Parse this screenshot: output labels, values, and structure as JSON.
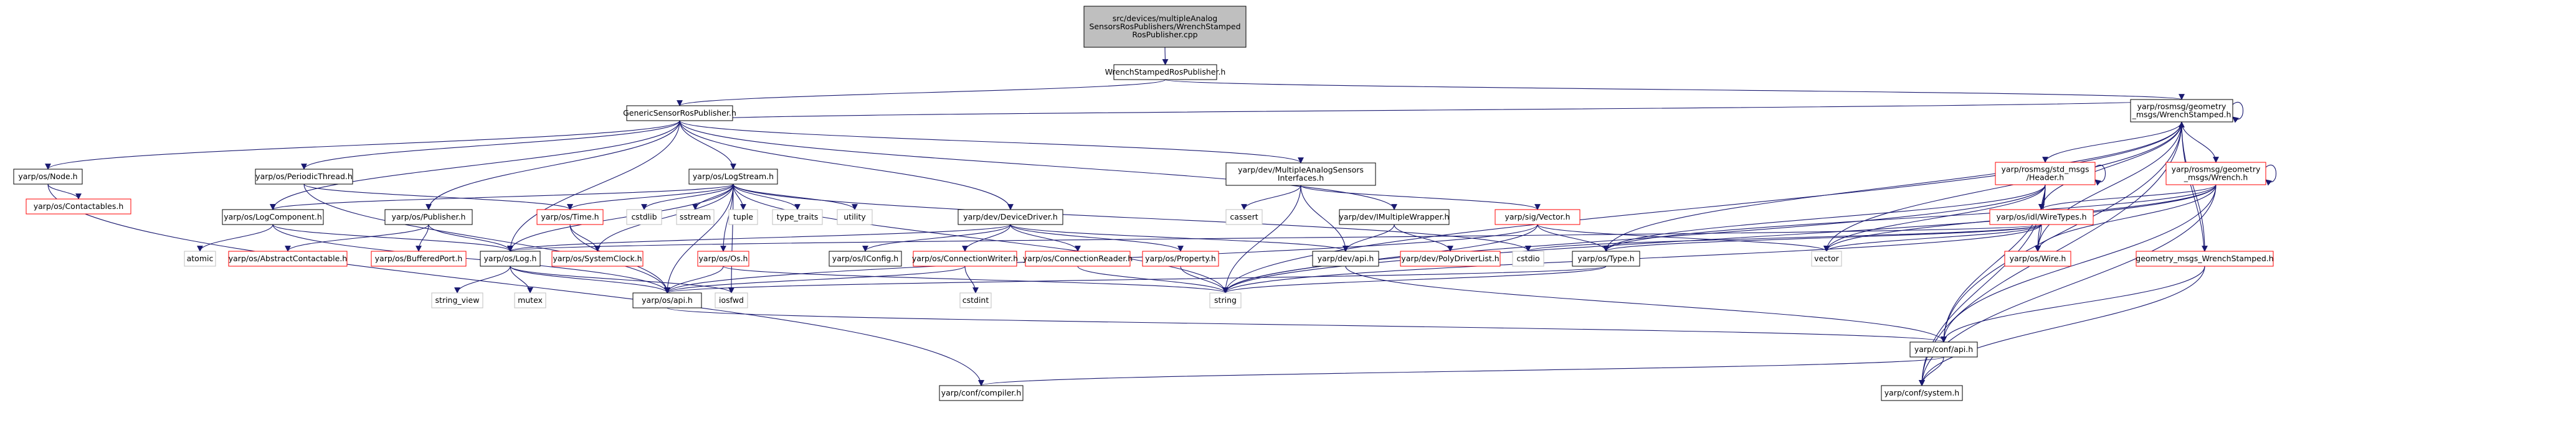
{
  "graph": {
    "root": {
      "lines": [
        "src/devices/multipleAnalog",
        "SensorsRosPublishers/WrenchStamped",
        "RosPublisher.cpp"
      ]
    },
    "nodes": [
      {
        "id": "n1",
        "lines": [
          "WrenchStampedRosPublisher.h"
        ],
        "style": "black"
      },
      {
        "id": "n2",
        "lines": [
          "GenericSensorRosPublisher.h"
        ],
        "style": "black"
      },
      {
        "id": "n3",
        "lines": [
          "yarp/rosmsg/geometry",
          "_msgs/WrenchStamped.h"
        ],
        "style": "black"
      },
      {
        "id": "n4",
        "lines": [
          "yarp/os/Node.h"
        ],
        "style": "black"
      },
      {
        "id": "n5",
        "lines": [
          "yarp/os/Contactables.h"
        ],
        "style": "red"
      },
      {
        "id": "n6",
        "lines": [
          "yarp/os/PeriodicThread.h"
        ],
        "style": "black"
      },
      {
        "id": "n7",
        "lines": [
          "yarp/os/LogStream.h"
        ],
        "style": "black"
      },
      {
        "id": "n8",
        "lines": [
          "yarp/dev/MultipleAnalogSensors",
          "Interfaces.h"
        ],
        "style": "black"
      },
      {
        "id": "n9",
        "lines": [
          "yarp/rosmsg/std_msgs",
          "/Header.h"
        ],
        "style": "red"
      },
      {
        "id": "n10",
        "lines": [
          "yarp/rosmsg/geometry",
          "_msgs/Wrench.h"
        ],
        "style": "red"
      },
      {
        "id": "n11",
        "lines": [
          "yarp/os/LogComponent.h"
        ],
        "style": "black"
      },
      {
        "id": "n12",
        "lines": [
          "yarp/os/Publisher.h"
        ],
        "style": "black"
      },
      {
        "id": "n13",
        "lines": [
          "yarp/os/Time.h"
        ],
        "style": "red"
      },
      {
        "id": "n14",
        "lines": [
          "cstdlib"
        ],
        "style": "gray"
      },
      {
        "id": "n15",
        "lines": [
          "sstream"
        ],
        "style": "gray"
      },
      {
        "id": "n16",
        "lines": [
          "tuple"
        ],
        "style": "gray"
      },
      {
        "id": "n17",
        "lines": [
          "type_traits"
        ],
        "style": "gray"
      },
      {
        "id": "n18",
        "lines": [
          "utility"
        ],
        "style": "gray"
      },
      {
        "id": "n19",
        "lines": [
          "yarp/dev/DeviceDriver.h"
        ],
        "style": "black"
      },
      {
        "id": "n20",
        "lines": [
          "cassert"
        ],
        "style": "gray"
      },
      {
        "id": "n21",
        "lines": [
          "yarp/dev/IMultipleWrapper.h"
        ],
        "style": "black"
      },
      {
        "id": "n22",
        "lines": [
          "yarp/sig/Vector.h"
        ],
        "style": "red"
      },
      {
        "id": "n23",
        "lines": [
          "yarp/os/idl/WireTypes.h"
        ],
        "style": "red"
      },
      {
        "id": "n24",
        "lines": [
          "atomic"
        ],
        "style": "gray"
      },
      {
        "id": "n25",
        "lines": [
          "yarp/os/AbstractContactable.h"
        ],
        "style": "red"
      },
      {
        "id": "n26",
        "lines": [
          "yarp/os/BufferedPort.h"
        ],
        "style": "red"
      },
      {
        "id": "n27",
        "lines": [
          "yarp/os/Log.h"
        ],
        "style": "black"
      },
      {
        "id": "n28",
        "lines": [
          "yarp/os/SystemClock.h"
        ],
        "style": "red"
      },
      {
        "id": "n29",
        "lines": [
          "yarp/os/Os.h"
        ],
        "style": "red"
      },
      {
        "id": "n30",
        "lines": [
          "yarp/os/IConfig.h"
        ],
        "style": "black"
      },
      {
        "id": "n31",
        "lines": [
          "yarp/os/ConnectionWriter.h"
        ],
        "style": "red"
      },
      {
        "id": "n32",
        "lines": [
          "yarp/os/ConnectionReader.h"
        ],
        "style": "red"
      },
      {
        "id": "n33",
        "lines": [
          "yarp/os/Property.h"
        ],
        "style": "red"
      },
      {
        "id": "n34",
        "lines": [
          "yarp/dev/api.h"
        ],
        "style": "black"
      },
      {
        "id": "n35",
        "lines": [
          "yarp/dev/PolyDriverList.h"
        ],
        "style": "red"
      },
      {
        "id": "n36",
        "lines": [
          "cstdio"
        ],
        "style": "gray"
      },
      {
        "id": "n37",
        "lines": [
          "yarp/os/Type.h"
        ],
        "style": "black"
      },
      {
        "id": "n38",
        "lines": [
          "vector"
        ],
        "style": "gray"
      },
      {
        "id": "n39",
        "lines": [
          "yarp/os/Wire.h"
        ],
        "style": "red"
      },
      {
        "id": "n40",
        "lines": [
          "geometry_msgs_WrenchStamped.h"
        ],
        "style": "red"
      },
      {
        "id": "n41",
        "lines": [
          "string_view"
        ],
        "style": "gray"
      },
      {
        "id": "n42",
        "lines": [
          "mutex"
        ],
        "style": "gray"
      },
      {
        "id": "n43",
        "lines": [
          "yarp/os/api.h"
        ],
        "style": "black"
      },
      {
        "id": "n44",
        "lines": [
          "iosfwd"
        ],
        "style": "gray"
      },
      {
        "id": "n45",
        "lines": [
          "cstdint"
        ],
        "style": "gray"
      },
      {
        "id": "n46",
        "lines": [
          "string"
        ],
        "style": "gray"
      },
      {
        "id": "n47",
        "lines": [
          "yarp/conf/api.h"
        ],
        "style": "black"
      },
      {
        "id": "n48",
        "lines": [
          "yarp/conf/compiler.h"
        ],
        "style": "black"
      },
      {
        "id": "n49",
        "lines": [
          "yarp/conf/system.h"
        ],
        "style": "black"
      }
    ],
    "edges": [
      [
        "root",
        "n1"
      ],
      [
        "n1",
        "n2"
      ],
      [
        "n1",
        "n3"
      ],
      [
        "n2",
        "n4"
      ],
      [
        "n2",
        "n6"
      ],
      [
        "n2",
        "n7"
      ],
      [
        "n2",
        "n8"
      ],
      [
        "n2",
        "n11"
      ],
      [
        "n2",
        "n12"
      ],
      [
        "n2",
        "n19"
      ],
      [
        "n2",
        "n21"
      ],
      [
        "n2",
        "n27"
      ],
      [
        "n2",
        "n3"
      ],
      [
        "n4",
        "n5"
      ],
      [
        "n4",
        "n48"
      ],
      [
        "n6",
        "n13"
      ],
      [
        "n6",
        "n43"
      ],
      [
        "n7",
        "n11"
      ],
      [
        "n7",
        "n13"
      ],
      [
        "n7",
        "n14"
      ],
      [
        "n7",
        "n15"
      ],
      [
        "n7",
        "n16"
      ],
      [
        "n7",
        "n17"
      ],
      [
        "n7",
        "n18"
      ],
      [
        "n7",
        "n27"
      ],
      [
        "n7",
        "n28"
      ],
      [
        "n7",
        "n29"
      ],
      [
        "n7",
        "n36"
      ],
      [
        "n7",
        "n43"
      ],
      [
        "n7",
        "n44"
      ],
      [
        "n7",
        "n46"
      ],
      [
        "n8",
        "n20"
      ],
      [
        "n8",
        "n22"
      ],
      [
        "n8",
        "n34"
      ],
      [
        "n8",
        "n46"
      ],
      [
        "n11",
        "n24"
      ],
      [
        "n11",
        "n27"
      ],
      [
        "n11",
        "n43"
      ],
      [
        "n12",
        "n25"
      ],
      [
        "n12",
        "n26"
      ],
      [
        "n12",
        "n27"
      ],
      [
        "n13",
        "n28"
      ],
      [
        "n13",
        "n43"
      ],
      [
        "n19",
        "n30"
      ],
      [
        "n19",
        "n31"
      ],
      [
        "n19",
        "n32"
      ],
      [
        "n19",
        "n33"
      ],
      [
        "n19",
        "n34"
      ],
      [
        "n19",
        "n27"
      ],
      [
        "n21",
        "n34"
      ],
      [
        "n21",
        "n35"
      ],
      [
        "n22",
        "n37"
      ],
      [
        "n22",
        "n38"
      ],
      [
        "n22",
        "n43"
      ],
      [
        "n22",
        "n46"
      ],
      [
        "n23",
        "n36"
      ],
      [
        "n23",
        "n37"
      ],
      [
        "n23",
        "n38"
      ],
      [
        "n23",
        "n39"
      ],
      [
        "n23",
        "n46"
      ],
      [
        "n23",
        "n27"
      ],
      [
        "n27",
        "n41"
      ],
      [
        "n27",
        "n42"
      ],
      [
        "n27",
        "n43"
      ],
      [
        "n27",
        "n44"
      ],
      [
        "n29",
        "n43"
      ],
      [
        "n29",
        "n46"
      ],
      [
        "n31",
        "n43"
      ],
      [
        "n31",
        "n45"
      ],
      [
        "n32",
        "n46"
      ],
      [
        "n33",
        "n46"
      ],
      [
        "n34",
        "n47"
      ],
      [
        "n37",
        "n43"
      ],
      [
        "n37",
        "n46"
      ],
      [
        "n3",
        "n3"
      ],
      [
        "n3",
        "n9"
      ],
      [
        "n3",
        "n10"
      ],
      [
        "n3",
        "n23"
      ],
      [
        "n3",
        "n37"
      ],
      [
        "n3",
        "n38"
      ],
      [
        "n3",
        "n39"
      ],
      [
        "n3",
        "n40"
      ],
      [
        "n3",
        "n46"
      ],
      [
        "n3",
        "n47"
      ],
      [
        "n3",
        "n49"
      ],
      [
        "n9",
        "n9"
      ],
      [
        "n9",
        "n23"
      ],
      [
        "n9",
        "n37"
      ],
      [
        "n9",
        "n38"
      ],
      [
        "n9",
        "n39"
      ],
      [
        "n9",
        "n46"
      ],
      [
        "n9",
        "n47"
      ],
      [
        "n9",
        "n49"
      ],
      [
        "n10",
        "n10"
      ],
      [
        "n10",
        "n23"
      ],
      [
        "n10",
        "n37"
      ],
      [
        "n10",
        "n38"
      ],
      [
        "n10",
        "n39"
      ],
      [
        "n10",
        "n46"
      ],
      [
        "n10",
        "n47"
      ],
      [
        "n10",
        "n49"
      ],
      [
        "n40",
        "n3"
      ],
      [
        "n40",
        "n47"
      ],
      [
        "n40",
        "n49"
      ],
      [
        "n43",
        "n47"
      ],
      [
        "n47",
        "n48"
      ],
      [
        "n47",
        "n49"
      ]
    ]
  },
  "colors": {
    "root_fill": "#bfbfbf",
    "node_fill": "#ffffff",
    "black_border": "#000000",
    "red_border": "#ff0000",
    "gray_border": "#bfbfbf",
    "edge": "#191970",
    "text": "#000000"
  }
}
